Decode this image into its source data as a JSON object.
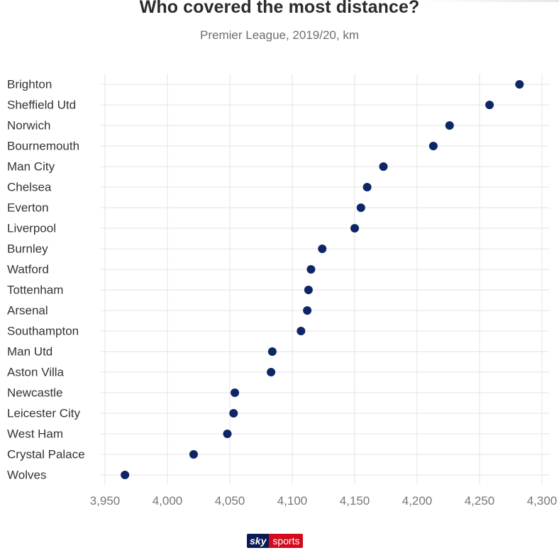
{
  "header": {
    "title": "Who covered the most distance?",
    "subtitle": "Premier League, 2019/20, km"
  },
  "brand": {
    "sky": "sky",
    "sports": "sports"
  },
  "colors": {
    "dot": "#0d2666",
    "grid": "#e3e3e3"
  },
  "chart_data": {
    "type": "scatter",
    "title": "Who covered the most distance?",
    "subtitle": "Premier League, 2019/20, km",
    "xlabel": "",
    "ylabel": "",
    "xlim": [
      3935,
      4305
    ],
    "xticks": [
      3950,
      4000,
      4050,
      4100,
      4150,
      4200,
      4250,
      4300
    ],
    "xtick_labels": [
      "3,950",
      "4,000",
      "4,050",
      "4,100",
      "4,150",
      "4,200",
      "4,250",
      "4,300"
    ],
    "grid": true,
    "legend": "none",
    "categories": [
      "Brighton",
      "Sheffield Utd",
      "Norwich",
      "Bournemouth",
      "Man City",
      "Chelsea",
      "Everton",
      "Liverpool",
      "Burnley",
      "Watford",
      "Tottenham",
      "Arsenal",
      "Southampton",
      "Man Utd",
      "Aston Villa",
      "Newcastle",
      "Leicester City",
      "West Ham",
      "Crystal Palace",
      "Wolves"
    ],
    "values": [
      4282,
      4258,
      4226,
      4213,
      4173,
      4160,
      4155,
      4150,
      4124,
      4115,
      4113,
      4112,
      4107,
      4084,
      4083,
      4054,
      4053,
      4048,
      4021,
      3966
    ]
  }
}
